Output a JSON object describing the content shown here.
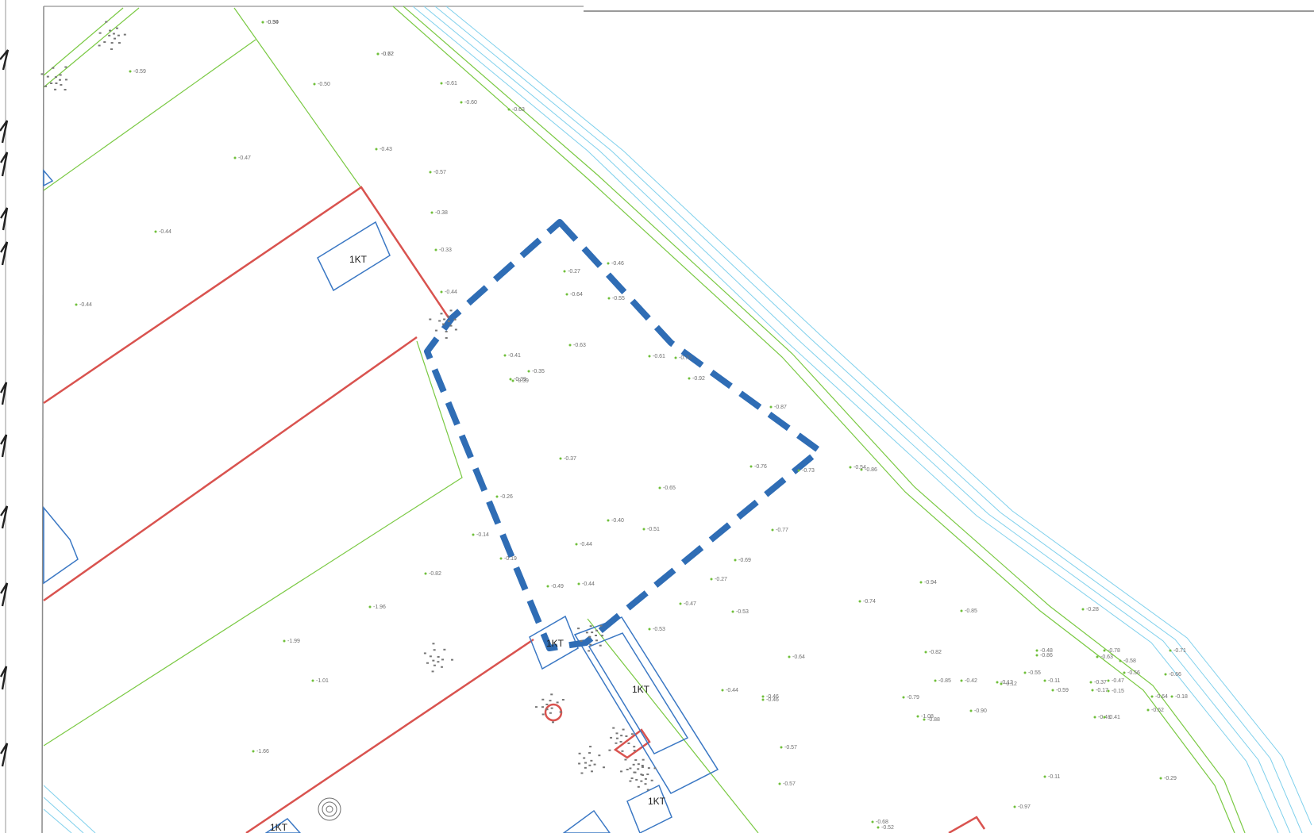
{
  "map": {
    "colors": {
      "background": "#ffffff",
      "parcel_green": "#7ac943",
      "boundary_red": "#d9534f",
      "building_blue": "#3b78c4",
      "water_cyan": "#7fd0ec",
      "highlight_blue": "#2f6db5",
      "elevation_text": "#6f6f6f",
      "label_text": "#1a1a1a"
    },
    "building_labels": [
      "1KT",
      "1KT",
      "1KT",
      "1KT",
      "1KT"
    ],
    "elevation_labels": [
      "-0.50",
      "-0.62",
      "-0.59",
      "-0.50",
      "-0.61",
      "-0.60",
      "-0.63",
      "-0.47",
      "-0.43",
      "-0.57",
      "-0.44",
      "-0.44",
      "-0.38",
      "-0.33",
      "-0.27",
      "-0.64",
      "-0.46",
      "-0.44",
      "-0.55",
      "-0.39",
      "-0.41",
      "-0.63",
      "-0.61",
      "-0.70",
      "-0.92",
      "-0.37",
      "-0.26",
      "-0.14",
      "-0.19",
      "-0.49",
      "-0.44",
      "-0.47",
      "-0.53",
      "-0.82",
      "-1.96",
      "-1.99",
      "-1.01",
      "-1.66",
      "-0.79",
      "-0.64",
      "-0.82",
      "-0.41",
      "-0.12",
      "-0.94",
      "-0.86",
      "-0.51",
      "-0.76",
      "-0.73",
      "-0.87",
      "-0.86",
      "-0.74",
      "-0.57",
      "-0.54",
      "-0.77",
      "-0.65",
      "-0.69",
      "-0.52",
      "-0.46",
      "-0.57",
      "-0.11",
      "-0.29",
      "-0.97",
      "-0.90",
      "-0.88",
      "-0.39",
      "-0.35",
      "-0.40",
      "-0.44",
      "-0.27",
      "-0.53",
      "-1.08",
      "-0.68",
      "-0.41",
      "-0.63",
      "-0.71",
      "-0.58",
      "-0.66",
      "-0.64",
      "-0.12",
      "-0.85",
      "-0.28",
      "-0.44",
      "-0.46",
      "-0.85",
      "-0.42",
      "-0.62",
      "-0.18",
      "-0.78",
      "-0.48",
      "-0.47",
      "-0.56",
      "-0.37",
      "-0.17",
      "-0.15",
      "-0.11",
      "-0.59",
      "-0.55",
      "-0.34",
      "-0.72"
    ]
  }
}
